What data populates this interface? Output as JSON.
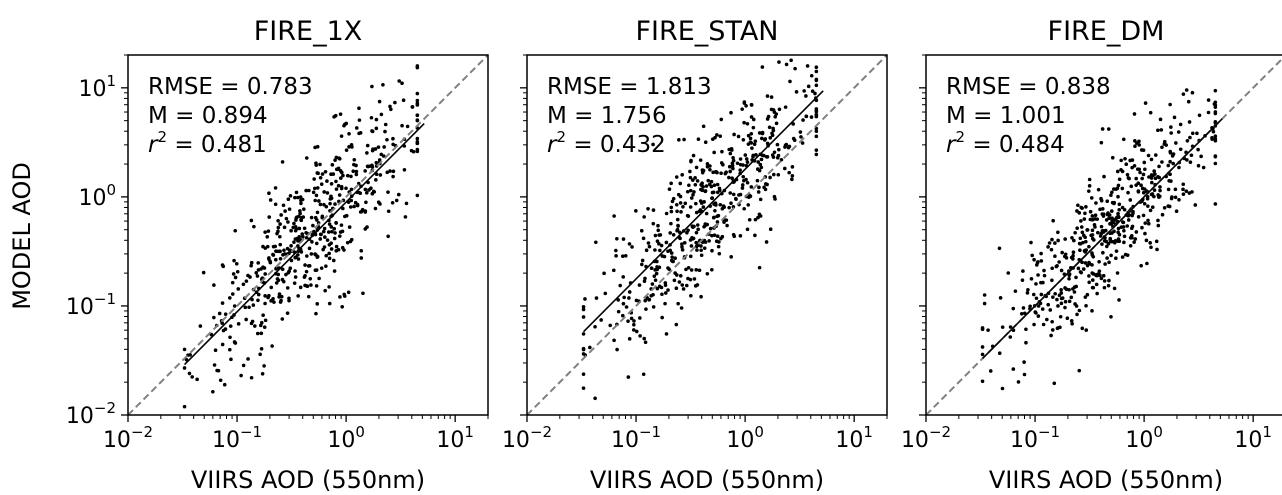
{
  "figure": {
    "ylabel": "MODEL AOD",
    "colors": {
      "points": "#000000",
      "fit": "#000000",
      "one_to_one": "#808080",
      "axes": "#000000"
    }
  },
  "chart_data": [
    {
      "type": "scatter",
      "title": "FIRE_1X",
      "xlabel": "VIIRS AOD (550nm)",
      "ylabel": "MODEL AOD",
      "xscale": "log",
      "yscale": "log",
      "xlim": [
        0.01,
        20
      ],
      "ylim": [
        0.01,
        20
      ],
      "x_tick_labels": [
        "10",
        "10",
        "10",
        "10"
      ],
      "x_tick_exponents": [
        "−2",
        "−1",
        "0",
        "1"
      ],
      "y_tick_labels": [
        "10",
        "10",
        "10",
        "10"
      ],
      "y_tick_exponents": [
        "−2",
        "−1",
        "0",
        "1"
      ],
      "stats": {
        "rmse_label": "RMSE = 0.783",
        "m_label": "M = 0.894",
        "r2_var": "r",
        "r2_exp": "2",
        "r2_value": " = 0.481"
      },
      "fit_line": {
        "x": [
          0.033,
          5.2
        ],
        "y": [
          0.029,
          4.7
        ]
      },
      "one_to_one": true,
      "points": {
        "count": 550,
        "x_center": 0.5,
        "x_sigma_log10": 0.52,
        "x_min": 0.033,
        "x_max": 4.5,
        "slope": 1.0,
        "intercept_log10": 0.0,
        "scatter_log10": 0.33
      }
    },
    {
      "type": "scatter",
      "title": "FIRE_STAN",
      "xlabel": "VIIRS AOD (550nm)",
      "ylabel": "",
      "xscale": "log",
      "yscale": "log",
      "xlim": [
        0.01,
        20
      ],
      "ylim": [
        0.01,
        20
      ],
      "x_tick_labels": [
        "10",
        "10",
        "10",
        "10"
      ],
      "x_tick_exponents": [
        "−2",
        "−1",
        "0",
        "1"
      ],
      "stats": {
        "rmse_label": "RMSE = 1.813",
        "m_label": "M = 1.756",
        "r2_var": "r",
        "r2_exp": "2",
        "r2_value": " = 0.432"
      },
      "fit_line": {
        "x": [
          0.033,
          5.2
        ],
        "y": [
          0.058,
          9.4
        ]
      },
      "one_to_one": true,
      "points": {
        "count": 550,
        "x_center": 0.5,
        "x_sigma_log10": 0.52,
        "x_min": 0.033,
        "x_max": 4.5,
        "slope": 1.0,
        "intercept_log10": 0.25,
        "scatter_log10": 0.34
      }
    },
    {
      "type": "scatter",
      "title": "FIRE_DM",
      "xlabel": "VIIRS AOD (550nm)",
      "ylabel": "",
      "xscale": "log",
      "yscale": "log",
      "xlim": [
        0.01,
        20
      ],
      "ylim": [
        0.01,
        20
      ],
      "x_tick_labels": [
        "10",
        "10",
        "10",
        "10"
      ],
      "x_tick_exponents": [
        "−2",
        "−1",
        "0",
        "1"
      ],
      "stats": {
        "rmse_label": "RMSE = 0.838",
        "m_label": "M = 1.001",
        "r2_var": "r",
        "r2_exp": "2",
        "r2_value": " = 0.484"
      },
      "fit_line": {
        "x": [
          0.033,
          5.2
        ],
        "y": [
          0.033,
          5.2
        ]
      },
      "one_to_one": true,
      "points": {
        "count": 550,
        "x_center": 0.5,
        "x_sigma_log10": 0.52,
        "x_min": 0.033,
        "x_max": 4.5,
        "slope": 1.0,
        "intercept_log10": 0.02,
        "scatter_log10": 0.31
      }
    }
  ]
}
